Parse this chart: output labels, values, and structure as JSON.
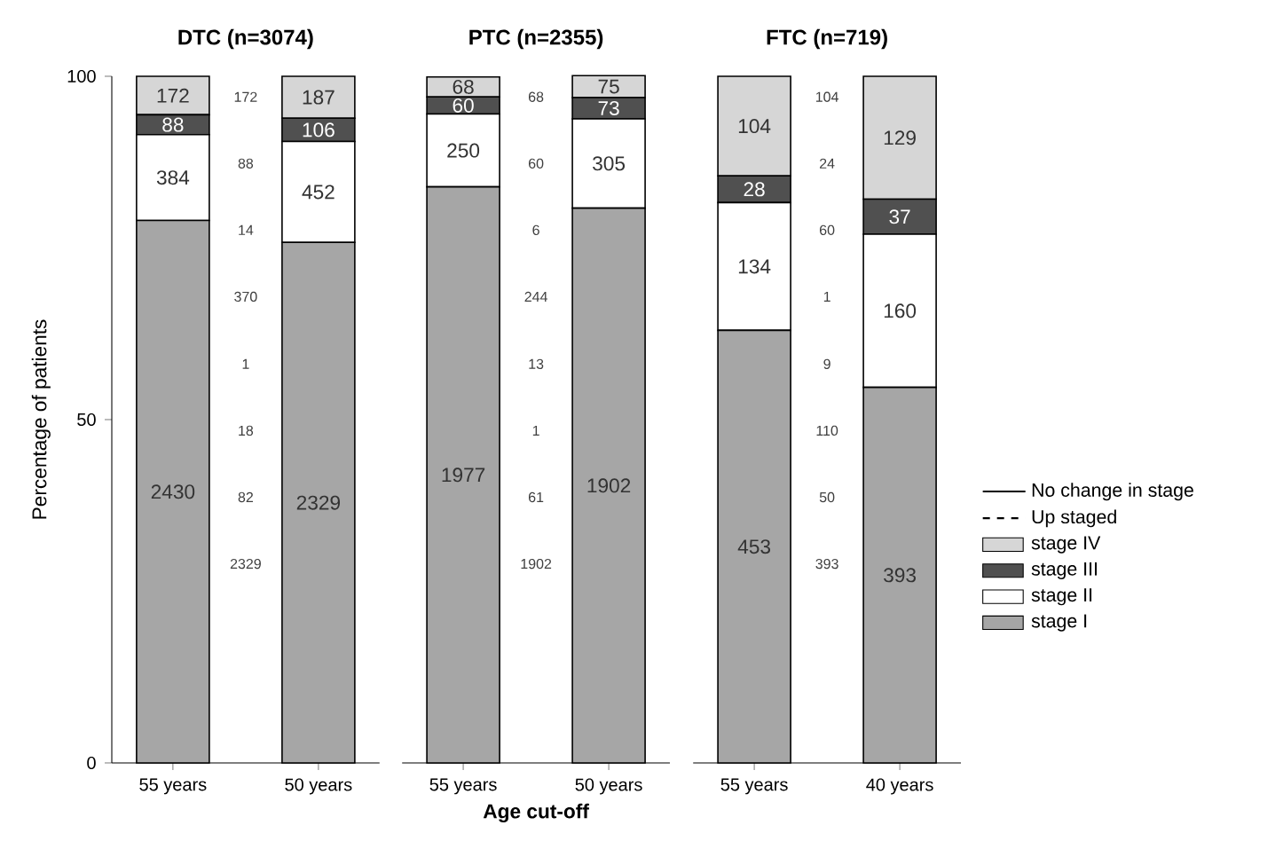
{
  "chart_data": [
    {
      "type": "bar",
      "stacked": true,
      "title": "DTC (n=3074)",
      "ylabel": "Percentage of patients",
      "categories": [
        "55 years",
        null,
        "50 years"
      ],
      "ylim": [
        0,
        100
      ],
      "yticks": [
        0,
        50,
        100
      ],
      "series": [
        {
          "color": "#a6a6a6",
          "values": [
            79.0,
            null,
            75.8
          ]
        },
        {
          "color": "#ffffff",
          "values": [
            12.5,
            null,
            14.7
          ]
        },
        {
          "color": "#505050",
          "values": [
            2.9,
            null,
            3.4
          ]
        },
        {
          "color": "#d6d6d6",
          "values": [
            5.6,
            null,
            6.1
          ]
        }
      ],
      "annotations": [
        "2430",
        "2329",
        "384",
        "452",
        "88",
        "106",
        "172",
        "187",
        "172",
        "88",
        "14",
        "370",
        "1",
        "18",
        "82",
        "2329"
      ]
    },
    {
      "type": "bar",
      "stacked": true,
      "title": "PTC (n=2355)",
      "xlabel": "Age cut-off",
      "categories": [
        "55 years",
        null,
        "50 years"
      ],
      "ylim": [
        0,
        100
      ],
      "tick_labels": "x",
      "series": [
        {
          "color": "#a6a6a6",
          "values": [
            83.9,
            null,
            80.8
          ]
        },
        {
          "color": "#ffffff",
          "values": [
            10.6,
            null,
            13.0
          ]
        },
        {
          "color": "#505050",
          "values": [
            2.5,
            null,
            3.1
          ]
        },
        {
          "color": "#d6d6d6",
          "values": [
            2.9,
            null,
            3.2
          ]
        }
      ],
      "annotations": [
        "1977",
        "1902",
        "250",
        "305",
        "60",
        "73",
        "68",
        "75",
        "68",
        "60",
        "6",
        "244",
        "13",
        "1",
        "61",
        "1902"
      ]
    },
    {
      "type": "bar",
      "stacked": true,
      "title": "FTC (n=719)",
      "categories": [
        "55 years",
        null,
        "40 years"
      ],
      "ylim": [
        0,
        100
      ],
      "tick_labels": "x",
      "legend": "right",
      "series": [
        {
          "name": "stage I",
          "color": "#a6a6a6",
          "values": [
            63.0,
            null,
            54.7
          ]
        },
        {
          "name": "stage II",
          "color": "#ffffff",
          "values": [
            18.6,
            null,
            22.3
          ]
        },
        {
          "name": "stage III",
          "color": "#505050",
          "values": [
            3.9,
            null,
            5.1
          ]
        },
        {
          "name": "stage IV",
          "color": "#d6d6d6",
          "values": [
            14.5,
            null,
            17.9
          ]
        },
        {
          "name": "No change in stage",
          "type": "line",
          "line_style": "solid",
          "color": "#000000",
          "values": [
            null,
            null,
            null
          ]
        },
        {
          "name": "Up staged",
          "type": "line",
          "line_style": "dashed",
          "color": "#000000",
          "values": [
            null,
            null,
            null
          ]
        }
      ],
      "annotations": [
        "453",
        "393",
        "134",
        "160",
        "28",
        "37",
        "104",
        "129",
        "104",
        "24",
        "60",
        "1",
        "9",
        "110",
        "50",
        "393"
      ]
    }
  ]
}
